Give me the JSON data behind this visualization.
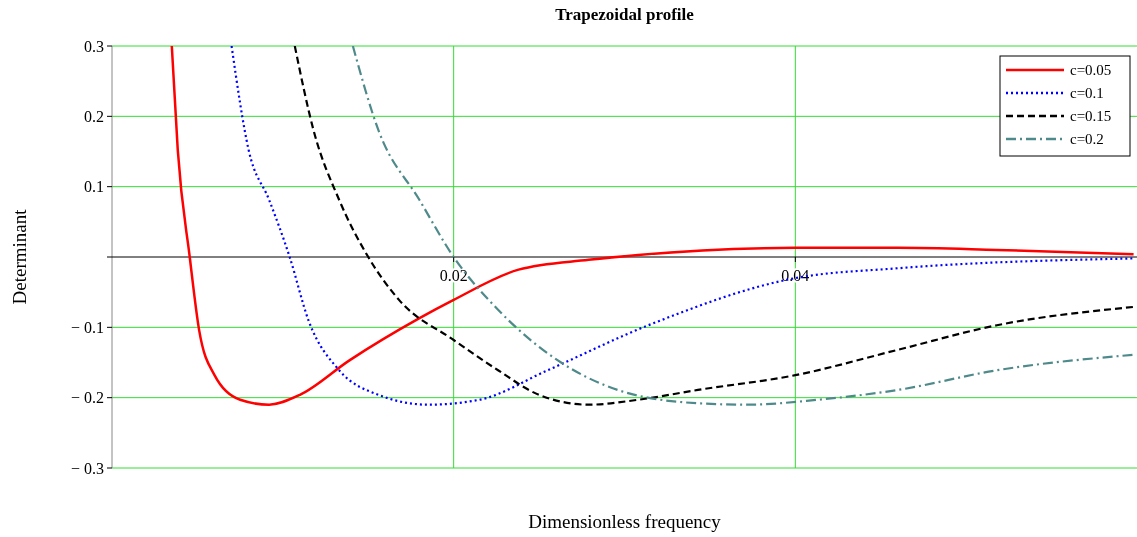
{
  "chart_data": {
    "type": "line",
    "title": "Trapezoidal profile",
    "xlabel": "Dimensionless frequency",
    "ylabel": "Determinant",
    "xlim": [
      0,
      0.06
    ],
    "ylim": [
      -0.3,
      0.3
    ],
    "xticks": [
      0.02,
      0.04
    ],
    "yticks": [
      {
        "value": -0.3,
        "label": "− 0.3"
      },
      {
        "value": -0.2,
        "label": "− 0.2"
      },
      {
        "value": -0.1,
        "label": "− 0.1"
      },
      {
        "value": 0,
        "label": null
      },
      0.1,
      0.2,
      0.3
    ],
    "grid": true,
    "legend": "top right",
    "series": [
      {
        "name": "c=0.05",
        "color": "#ff0000",
        "line_style": "solid",
        "x": [
          0.0035,
          0.00385,
          0.00455,
          0.0051,
          0.006,
          0.0075,
          0.0092,
          0.011,
          0.0139,
          0.018,
          0.02,
          0.0238,
          0.0279,
          0.0308,
          0.04,
          0.046,
          0.0518,
          0.0598
        ],
        "values": [
          0.3,
          0.152,
          0,
          -0.104,
          -0.168,
          -0.203,
          -0.21,
          -0.196,
          -0.147,
          -0.087,
          -0.061,
          -0.018,
          -0.004,
          0.003,
          0.013,
          0.013,
          0.01,
          0.004
        ]
      },
      {
        "name": "c=0.1",
        "color": "#0000ff",
        "line_style": "dotted",
        "x": [
          0.007,
          0.008,
          0.0092,
          0.0104,
          0.0115,
          0.0133,
          0.0156,
          0.0185,
          0.0215,
          0.0255,
          0.0314,
          0.04,
          0.046,
          0.0598
        ],
        "values": [
          0.3,
          0.152,
          0.081,
          0,
          -0.09,
          -0.161,
          -0.196,
          -0.21,
          -0.203,
          -0.161,
          -0.097,
          -0.03,
          -0.016,
          -0.002
        ]
      },
      {
        "name": "c=0.15",
        "color": "#000000",
        "line_style": "dashed",
        "x": [
          0.0107,
          0.0118,
          0.0133,
          0.015,
          0.0168,
          0.02,
          0.0226,
          0.025,
          0.0279,
          0.0308,
          0.0343,
          0.04,
          0.046,
          0.0518,
          0.0598
        ],
        "values": [
          0.3,
          0.18,
          0.081,
          0,
          -0.061,
          -0.118,
          -0.161,
          -0.196,
          -0.21,
          -0.203,
          -0.189,
          -0.168,
          -0.132,
          -0.097,
          -0.071
        ]
      },
      {
        "name": "c=0.2",
        "color": "#4f8a8b",
        "line_style": "dashdot",
        "x": [
          0.0141,
          0.0156,
          0.018,
          0.02,
          0.0226,
          0.0261,
          0.0296,
          0.0343,
          0.0372,
          0.0413,
          0.046,
          0.0518,
          0.0598
        ],
        "values": [
          0.3,
          0.18,
          0.081,
          0,
          -0.075,
          -0.147,
          -0.189,
          -0.208,
          -0.21,
          -0.203,
          -0.189,
          -0.161,
          -0.139
        ]
      }
    ]
  }
}
